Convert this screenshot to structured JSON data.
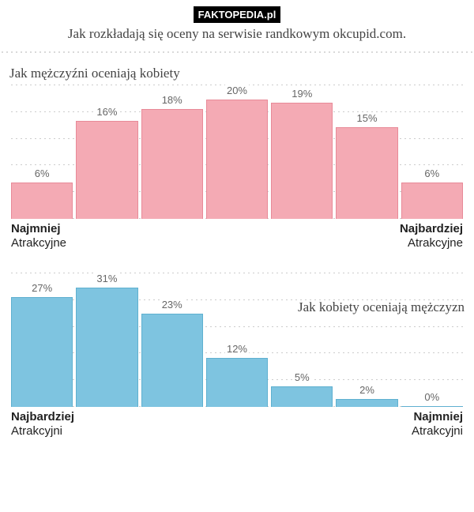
{
  "logo_text": "FAKTOPEDIA.pl",
  "subtitle": "Jak rozkładają się oceny na serwisie randkowym okcupid.com.",
  "chart1": {
    "title": "Jak mężczyźni oceniają kobiety",
    "type": "bar",
    "bar_color": "#f4aab4",
    "bar_border": "#e88a98",
    "background": "#ffffff",
    "grid_color": "#cccccc",
    "max_value": 22,
    "label_fontsize": 13,
    "title_fontsize": 17,
    "values": [
      6,
      16,
      18,
      20,
      19,
      15,
      6
    ],
    "labels": [
      "6%",
      "16%",
      "18%",
      "20%",
      "19%",
      "15%",
      "6%"
    ],
    "axis_left_strong": "Najmniej",
    "axis_left_sub": "Atrakcyjne",
    "axis_right_strong": "Najbardziej",
    "axis_right_sub": "Atrakcyjne"
  },
  "chart2": {
    "title": "Jak kobiety oceniają mężczyzn",
    "type": "bar",
    "bar_color": "#7ec4e0",
    "bar_border": "#5fb0d0",
    "background": "#ffffff",
    "grid_color": "#cccccc",
    "max_value": 33,
    "label_fontsize": 13,
    "title_fontsize": 17,
    "values": [
      27,
      31,
      23,
      12,
      5,
      2,
      0
    ],
    "labels": [
      "27%",
      "31%",
      "23%",
      "12%",
      "5%",
      "2%",
      "0%"
    ],
    "axis_left_strong": "Najbardziej",
    "axis_left_sub": "Atrakcyjni",
    "axis_right_strong": "Najmniej",
    "axis_right_sub": "Atrakcyjni"
  }
}
